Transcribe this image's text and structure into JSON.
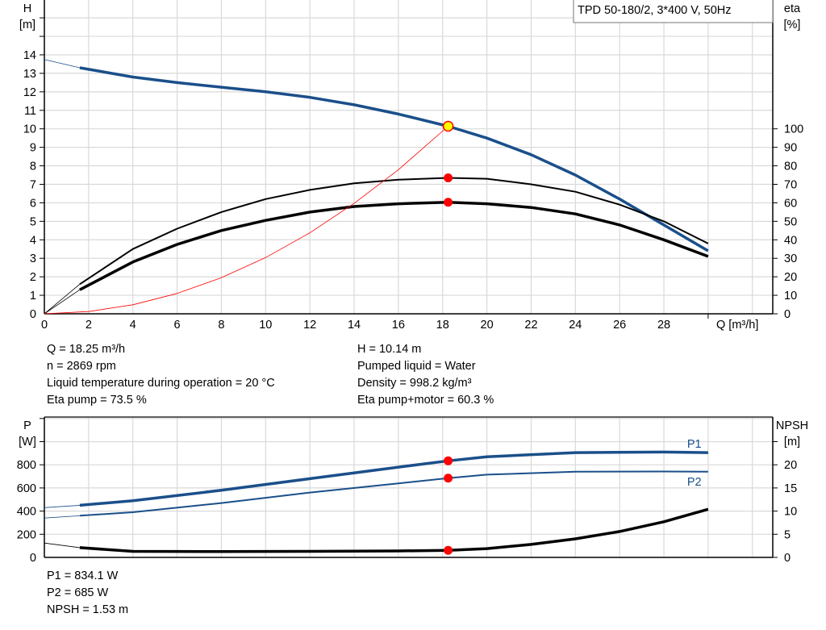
{
  "title_box": "TPD 50-180/2, 3*400 V, 50Hz",
  "info": {
    "q": "Q = 18.25 m³/h",
    "n": "n = 2869 rpm",
    "temp": "Liquid temperature during operation = 20 °C",
    "eta_pump": "Eta pump = 73.5 %",
    "h": "H = 10.14 m",
    "liquid": "Pumped liquid = Water",
    "density": "Density = 998.2 kg/m³",
    "eta_total": "Eta pump+motor = 60.3 %",
    "p1": "P1 = 834.1 W",
    "p2": "P2 = 685 W",
    "npsh": "NPSH = 1.53 m"
  },
  "colors": {
    "blue": "#1a4f8a",
    "black": "#000000",
    "red": "#ff0000",
    "duty_point": "#ffff00",
    "grid": "#d9d9d9"
  },
  "chart_data": [
    {
      "type": "line",
      "xlabel": "Q [m³/h]",
      "ylabel_left": [
        "H",
        "[m]"
      ],
      "ylabel_right": [
        "eta",
        "[%]"
      ],
      "x_ticks": [
        0,
        2,
        4,
        6,
        8,
        10,
        12,
        14,
        16,
        18,
        20,
        22,
        24,
        26,
        28
      ],
      "y_ticks_left": [
        0,
        1,
        2,
        3,
        4,
        5,
        6,
        7,
        8,
        9,
        10,
        11,
        12,
        13,
        14
      ],
      "y_ticks_right": [
        0,
        10,
        20,
        30,
        40,
        50,
        60,
        70,
        80,
        90,
        100
      ],
      "xlim": [
        0,
        33
      ],
      "ylim_left": [
        0,
        17
      ],
      "ylim_right": [
        0,
        170
      ],
      "grid": true,
      "series": [
        {
          "key": "H",
          "axis": "left",
          "color": "blue",
          "points": [
            [
              0,
              13.75
            ],
            [
              1.6,
              13.3
            ],
            [
              4,
              12.8
            ],
            [
              6,
              12.5
            ],
            [
              8,
              12.25
            ],
            [
              10,
              12.0
            ],
            [
              12,
              11.7
            ],
            [
              14,
              11.3
            ],
            [
              16,
              10.8
            ],
            [
              18.25,
              10.14
            ],
            [
              20,
              9.5
            ],
            [
              22,
              8.6
            ],
            [
              24,
              7.5
            ],
            [
              26,
              6.2
            ],
            [
              28,
              4.8
            ],
            [
              30,
              3.4
            ]
          ]
        },
        {
          "key": "eta_pump",
          "axis": "right",
          "color": "black",
          "points": [
            [
              0,
              0
            ],
            [
              1.6,
              16
            ],
            [
              4,
              35
            ],
            [
              6,
              46
            ],
            [
              8,
              55
            ],
            [
              10,
              62
            ],
            [
              12,
              67
            ],
            [
              14,
              70.5
            ],
            [
              16,
              72.5
            ],
            [
              18.25,
              73.5
            ],
            [
              20,
              73
            ],
            [
              22,
              70
            ],
            [
              24,
              66
            ],
            [
              26,
              59
            ],
            [
              28,
              50
            ],
            [
              30,
              38
            ]
          ]
        },
        {
          "key": "eta_pump_motor",
          "axis": "right",
          "color": "black",
          "points": [
            [
              0,
              0
            ],
            [
              1.6,
              13
            ],
            [
              4,
              28
            ],
            [
              6,
              37.5
            ],
            [
              8,
              45
            ],
            [
              10,
              50.5
            ],
            [
              12,
              55
            ],
            [
              14,
              58
            ],
            [
              16,
              59.5
            ],
            [
              18.25,
              60.3
            ],
            [
              20,
              59.5
            ],
            [
              22,
              57.5
            ],
            [
              24,
              54
            ],
            [
              26,
              48
            ],
            [
              28,
              40
            ],
            [
              30,
              31
            ]
          ]
        },
        {
          "key": "system_curve",
          "axis": "left",
          "color": "red",
          "points": [
            [
              0,
              0
            ],
            [
              2,
              0.12
            ],
            [
              4,
              0.49
            ],
            [
              6,
              1.1
            ],
            [
              8,
              1.95
            ],
            [
              10,
              3.04
            ],
            [
              12,
              4.38
            ],
            [
              14,
              5.97
            ],
            [
              16,
              7.79
            ],
            [
              18.25,
              10.14
            ]
          ]
        }
      ],
      "duty_point": {
        "q": 18.25,
        "h": 10.14,
        "eta_pump": 73.5,
        "eta_pump_motor": 60.3
      }
    },
    {
      "type": "line",
      "ylabel_left": [
        "P",
        "[W]"
      ],
      "ylabel_right": [
        "NPSH",
        "[m]"
      ],
      "y_ticks_left": [
        0,
        200,
        400,
        600,
        800
      ],
      "y_ticks_right": [
        0,
        5,
        10,
        15,
        20
      ],
      "ylim_left": [
        0,
        1200
      ],
      "ylim_right": [
        0,
        30
      ],
      "grid": true,
      "series": [
        {
          "name": "P1",
          "axis": "left",
          "color": "blue",
          "points": [
            [
              0,
              430
            ],
            [
              1.6,
              450
            ],
            [
              4,
              490
            ],
            [
              8,
              580
            ],
            [
              12,
              680
            ],
            [
              16,
              780
            ],
            [
              18.25,
              834.1
            ],
            [
              20,
              870
            ],
            [
              24,
              905
            ],
            [
              28,
              910
            ],
            [
              30,
              905
            ]
          ]
        },
        {
          "name": "P2",
          "axis": "left",
          "color": "blue",
          "points": [
            [
              0,
              340
            ],
            [
              1.6,
              360
            ],
            [
              4,
              390
            ],
            [
              8,
              470
            ],
            [
              12,
              560
            ],
            [
              16,
              640
            ],
            [
              18.25,
              685
            ],
            [
              20,
              715
            ],
            [
              24,
              740
            ],
            [
              28,
              742
            ],
            [
              30,
              740
            ]
          ]
        },
        {
          "key": "NPSH",
          "axis": "right",
          "color": "black",
          "points": [
            [
              0,
              3.1
            ],
            [
              1.6,
              2.1
            ],
            [
              4,
              1.3
            ],
            [
              8,
              1.25
            ],
            [
              12,
              1.3
            ],
            [
              16,
              1.4
            ],
            [
              18.25,
              1.53
            ],
            [
              20,
              1.9
            ],
            [
              22,
              2.8
            ],
            [
              24,
              4.0
            ],
            [
              26,
              5.6
            ],
            [
              28,
              7.7
            ],
            [
              30,
              10.4
            ]
          ]
        }
      ],
      "duty_point": {
        "q": 18.25,
        "p1": 834.1,
        "p2": 685,
        "npsh": 1.53
      }
    }
  ]
}
